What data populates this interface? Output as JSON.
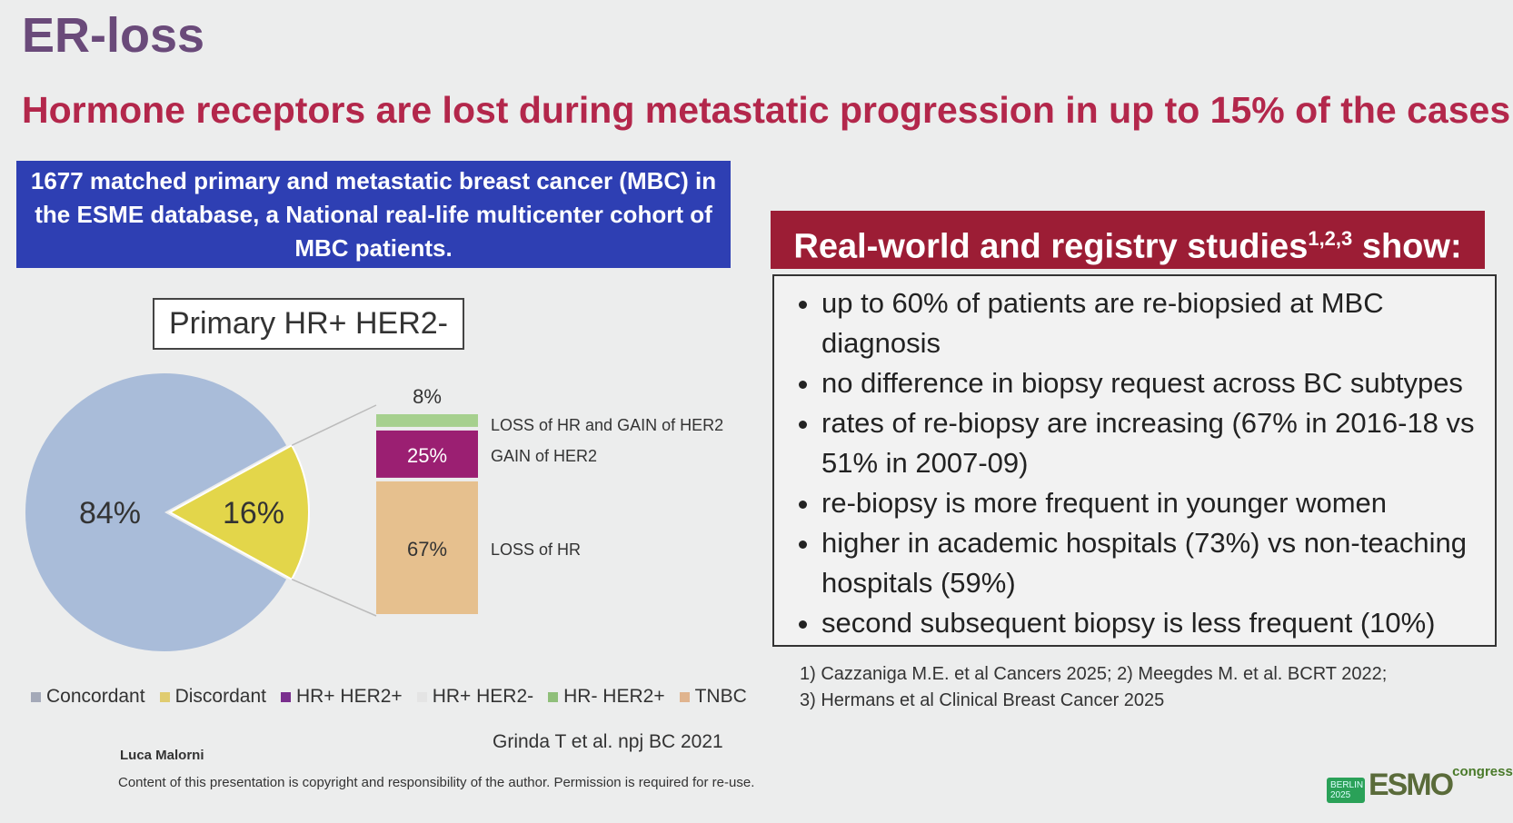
{
  "title": "ER-loss",
  "subtitle": "Hormone receptors are lost during metastatic progression in up to 15% of the cases",
  "bluebox": {
    "line1": "1677 matched primary and metastatic breast cancer (MBC) in",
    "line2": "the ESME database, a National real-life multicenter cohort of",
    "line3": "MBC patients."
  },
  "chart_data": {
    "type": "pie",
    "title": "Primary HR+ HER2-",
    "pie": {
      "labels": [
        "Concordant",
        "Discordant"
      ],
      "values": [
        84,
        16
      ],
      "value_labels": [
        "84%",
        "16%"
      ],
      "colors": [
        "#a9bcd9",
        "#e3d64a"
      ]
    },
    "bar": {
      "labels": [
        "LOSS of HR",
        "GAIN of HER2",
        "LOSS of HR and GAIN of HER2"
      ],
      "values": [
        67,
        25,
        8
      ],
      "value_labels": [
        "67%",
        "25%",
        "8%"
      ],
      "colors": [
        "#e6c08e",
        "#9b1f72",
        "#a6d08e"
      ]
    },
    "legend": [
      {
        "label": "Concordant",
        "color": "#a4a9b8"
      },
      {
        "label": "Discordant",
        "color": "#e0cc70"
      },
      {
        "label": "HR+ HER2+",
        "color": "#7a2f8e"
      },
      {
        "label": "HR+ HER2-",
        "color": "#e4e4e4"
      },
      {
        "label": "HR- HER2+",
        "color": "#8fbf7a"
      },
      {
        "label": "TNBC",
        "color": "#e0b48e"
      }
    ]
  },
  "right": {
    "header": "Real-world and registry studies",
    "header_sup": "1,2,3",
    "header_end": " show:",
    "bullets": [
      "up to 60% of patients are re-biopsied at MBC diagnosis",
      "no difference in biopsy request across BC subtypes",
      "rates of re-biopsy are increasing (67% in 2016-18 vs 51% in 2007-09)",
      "re-biopsy is more frequent in younger women",
      "higher in academic hospitals (73%) vs non-teaching hospitals (59%)",
      "second subsequent biopsy is less frequent (10%)"
    ],
    "refs": [
      "1) Cazzaniga M.E. et al Cancers 2025; 2) Meegdes M. et al. BCRT 2022;",
      "3) Hermans et al Clinical Breast Cancer 2025"
    ]
  },
  "citation": "Grinda T et al. npj BC 2021",
  "author": "Luca Malorni",
  "copyright": "Content of this presentation is copyright and responsibility of the author. Permission is required for re-use.",
  "logo": {
    "city": "BERLIN",
    "year": "2025",
    "name": "ESMO",
    "suffix": "congress"
  }
}
